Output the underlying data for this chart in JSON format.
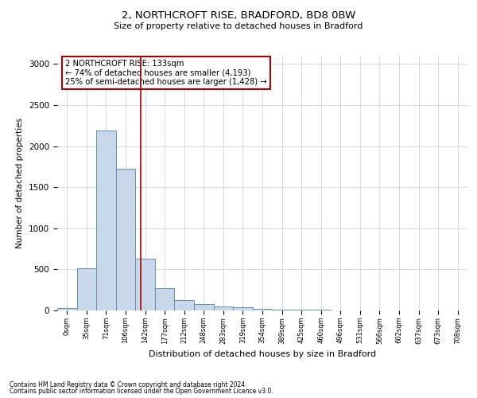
{
  "title1": "2, NORTHCROFT RISE, BRADFORD, BD8 0BW",
  "title2": "Size of property relative to detached houses in Bradford",
  "xlabel": "Distribution of detached houses by size in Bradford",
  "ylabel": "Number of detached properties",
  "bar_color": "#c8d8ea",
  "bar_edge_color": "#6090b0",
  "categories": [
    "0sqm",
    "35sqm",
    "71sqm",
    "106sqm",
    "142sqm",
    "177sqm",
    "212sqm",
    "248sqm",
    "283sqm",
    "319sqm",
    "354sqm",
    "389sqm",
    "425sqm",
    "460sqm",
    "496sqm",
    "531sqm",
    "566sqm",
    "602sqm",
    "637sqm",
    "673sqm",
    "708sqm"
  ],
  "values": [
    30,
    510,
    2190,
    1720,
    630,
    270,
    130,
    75,
    50,
    35,
    20,
    12,
    8,
    5,
    3,
    2,
    2,
    1,
    1,
    1,
    0
  ],
  "ylim": [
    0,
    3100
  ],
  "yticks": [
    0,
    500,
    1000,
    1500,
    2000,
    2500,
    3000
  ],
  "red_line_x": 3.78,
  "annotation_text": "2 NORTHCROFT RISE: 133sqm\n← 74% of detached houses are smaller (4,193)\n25% of semi-detached houses are larger (1,428) →",
  "footer1": "Contains HM Land Registry data © Crown copyright and database right 2024.",
  "footer2": "Contains public sector information licensed under the Open Government Licence v3.0.",
  "background_color": "#ffffff",
  "grid_color": "#d0d8e8"
}
